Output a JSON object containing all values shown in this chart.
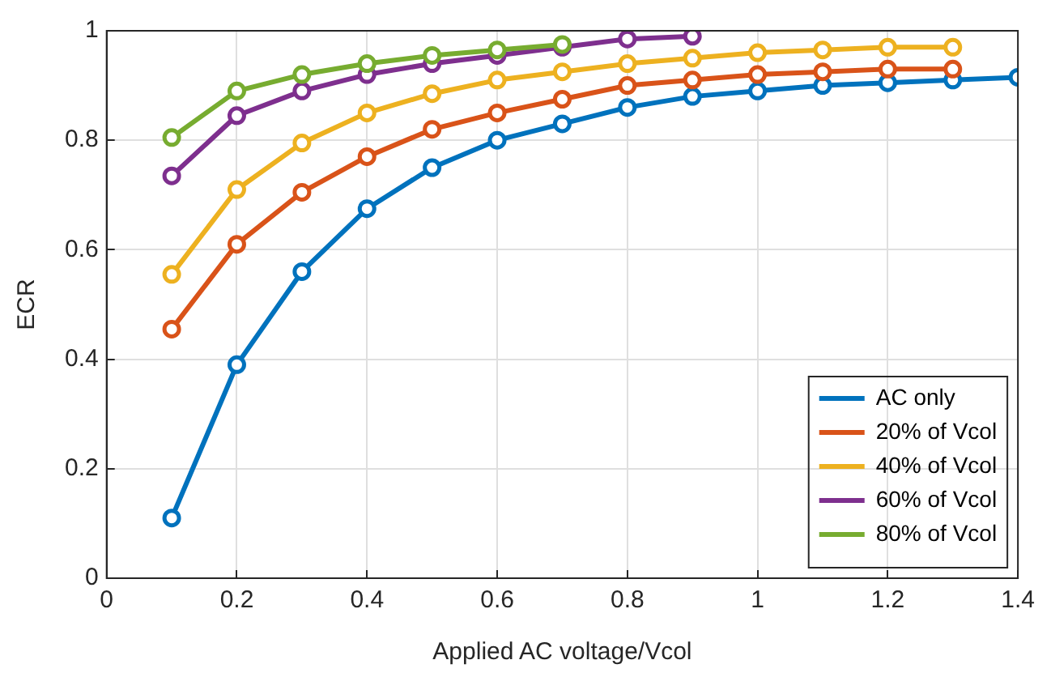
{
  "chart_data": {
    "type": "line",
    "xlabel": "Applied AC voltage/Vcol",
    "ylabel": "ECR",
    "xlim": [
      0,
      1.4
    ],
    "xticks": [
      0,
      0.2,
      0.4,
      0.6,
      0.8,
      1,
      1.2,
      1.4
    ],
    "ylim": [
      0,
      1
    ],
    "yticks": [
      0,
      0.2,
      0.4,
      0.6,
      0.8,
      1
    ],
    "grid": true,
    "legend": "bottom right",
    "marker": "circle",
    "line_style": "solid",
    "series": [
      {
        "name": "AC only",
        "color": "#0072bd",
        "x": [
          0.1,
          0.2,
          0.3,
          0.4,
          0.5,
          0.6,
          0.7,
          0.8,
          0.9,
          1,
          1.1,
          1.2,
          1.3,
          1.4
        ],
        "values": [
          0.11,
          0.39,
          0.56,
          0.675,
          0.75,
          0.8,
          0.83,
          0.86,
          0.88,
          0.89,
          0.9,
          0.905,
          0.91,
          0.915
        ]
      },
      {
        "name": "20% of Vcol",
        "color": "#d95319",
        "x": [
          0.1,
          0.2,
          0.3,
          0.4,
          0.5,
          0.6,
          0.7,
          0.8,
          0.9,
          1,
          1.1,
          1.2,
          1.3
        ],
        "values": [
          0.455,
          0.61,
          0.705,
          0.77,
          0.82,
          0.85,
          0.875,
          0.9,
          0.91,
          0.92,
          0.925,
          0.93,
          0.93
        ]
      },
      {
        "name": "40% of Vcol",
        "color": "#edb120",
        "x": [
          0.1,
          0.2,
          0.3,
          0.4,
          0.5,
          0.6,
          0.7,
          0.8,
          0.9,
          1,
          1.1,
          1.2,
          1.3
        ],
        "values": [
          0.555,
          0.71,
          0.795,
          0.85,
          0.885,
          0.91,
          0.925,
          0.94,
          0.95,
          0.96,
          0.965,
          0.97,
          0.97
        ]
      },
      {
        "name": "60% of Vcol",
        "color": "#7e2f8e",
        "x": [
          0.1,
          0.2,
          0.3,
          0.4,
          0.5,
          0.6,
          0.7,
          0.8,
          0.9
        ],
        "values": [
          0.735,
          0.845,
          0.89,
          0.92,
          0.94,
          0.955,
          0.97,
          0.985,
          0.99
        ]
      },
      {
        "name": "80% of Vcol",
        "color": "#77ac30",
        "x": [
          0.1,
          0.2,
          0.3,
          0.4,
          0.5,
          0.6,
          0.7
        ],
        "values": [
          0.805,
          0.89,
          0.92,
          0.94,
          0.955,
          0.965,
          0.975
        ]
      }
    ]
  }
}
